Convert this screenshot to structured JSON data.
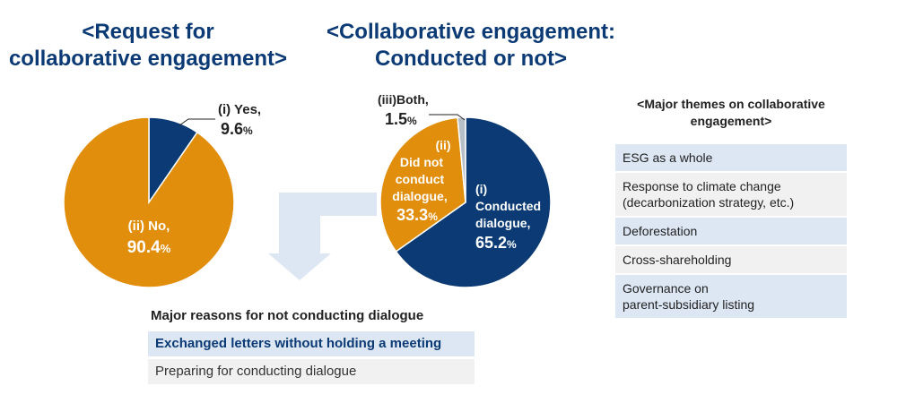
{
  "colors": {
    "navy": "#0b3a75",
    "orange": "#e08e0b",
    "gray": "#b6bec8",
    "arrow": "#dde7f4",
    "row_blue": "#dde7f4",
    "row_gray": "#f1f1f1"
  },
  "chart_data": [
    {
      "type": "pie",
      "title": "<Request for collaborative engagement>",
      "categories": [
        "(i) Yes",
        "(ii) No"
      ],
      "values": [
        9.6,
        90.4
      ],
      "unit": "%",
      "colors": [
        "#0b3a75",
        "#e08e0b"
      ]
    },
    {
      "type": "pie",
      "title": "<Collaborative engagement: Conducted or not>",
      "categories": [
        "(i) Conducted dialogue",
        "(ii) Did not conduct dialogue",
        "(iii)Both"
      ],
      "values": [
        65.2,
        33.3,
        1.5
      ],
      "unit": "%",
      "colors": [
        "#0b3a75",
        "#e08e0b",
        "#b6bec8"
      ]
    }
  ],
  "titles": {
    "left_line1": "<Request for",
    "left_line2": "collaborative engagement>",
    "right_line1": "<Collaborative engagement:",
    "right_line2": "Conducted or not>"
  },
  "pie1_labels": {
    "yes_name": "(i) Yes,",
    "yes_value": "9.6",
    "no_name": "(ii) No,",
    "no_value": "90.4",
    "pct": "%"
  },
  "pie2_labels": {
    "both_name": "(iii)Both,",
    "both_value": "1.5",
    "did_not_line1": "(ii)",
    "did_not_line2": "Did not",
    "did_not_line3": "conduct",
    "did_not_line4": "dialogue,",
    "did_not_value": "33.3",
    "conducted_line1": "(i)",
    "conducted_line2": "Conducted",
    "conducted_line3": "dialogue,",
    "conducted_value": "65.2",
    "pct": "%"
  },
  "themes": {
    "title_line1": "<Major themes on collaborative",
    "title_line2": "engagement>",
    "items": [
      "ESG as a whole",
      "Response to climate change\n(decarbonization strategy, etc.)",
      "Deforestation",
      "Cross-shareholding",
      "Governance on\nparent-subsidiary listing"
    ]
  },
  "reasons": {
    "title": "Major reasons for not conducting dialogue",
    "items": [
      "Exchanged letters without holding a meeting",
      "Preparing for conducting dialogue"
    ]
  }
}
